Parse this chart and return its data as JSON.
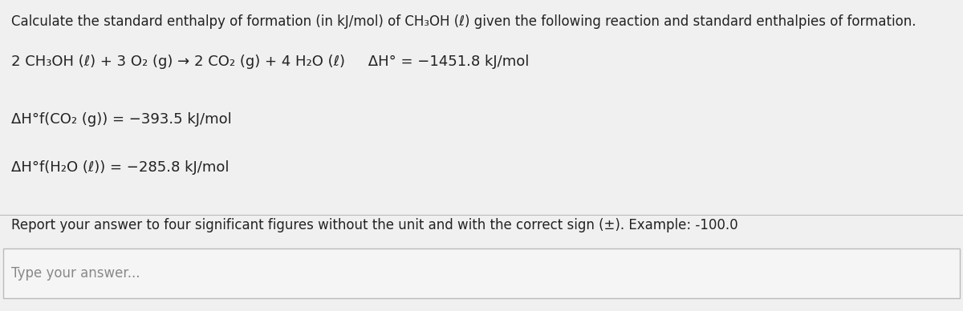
{
  "title": "Calculate the standard enthalpy of formation (in kJ/mol) of CH₃OH (ℓ) given the following reaction and standard enthalpies of formation.",
  "line1": "2 CH₃OH (ℓ) + 3 O₂ (g) → 2 CO₂ (g) + 4 H₂O (ℓ)     ΔH° = −1451.8 kJ/mol",
  "line2": "ΔH°f(CO₂ (g)) = −393.5 kJ/mol",
  "line3": "ΔH°f(H₂O (ℓ)) = −285.8 kJ/mol",
  "report_line": "Report your answer to four significant figures without the unit and with the correct sign (±). Example: -100.0",
  "input_placeholder": "Type your answer...",
  "bg_color": "#f0f0f0",
  "text_color": "#222222",
  "input_bg": "#f5f5f5",
  "input_border": "#bbbbbb",
  "divider_color": "#bbbbbb",
  "title_fontsize": 12.0,
  "body_fontsize": 13.0,
  "report_fontsize": 12.0,
  "input_fontsize": 12.0,
  "placeholder_color": "#888888"
}
